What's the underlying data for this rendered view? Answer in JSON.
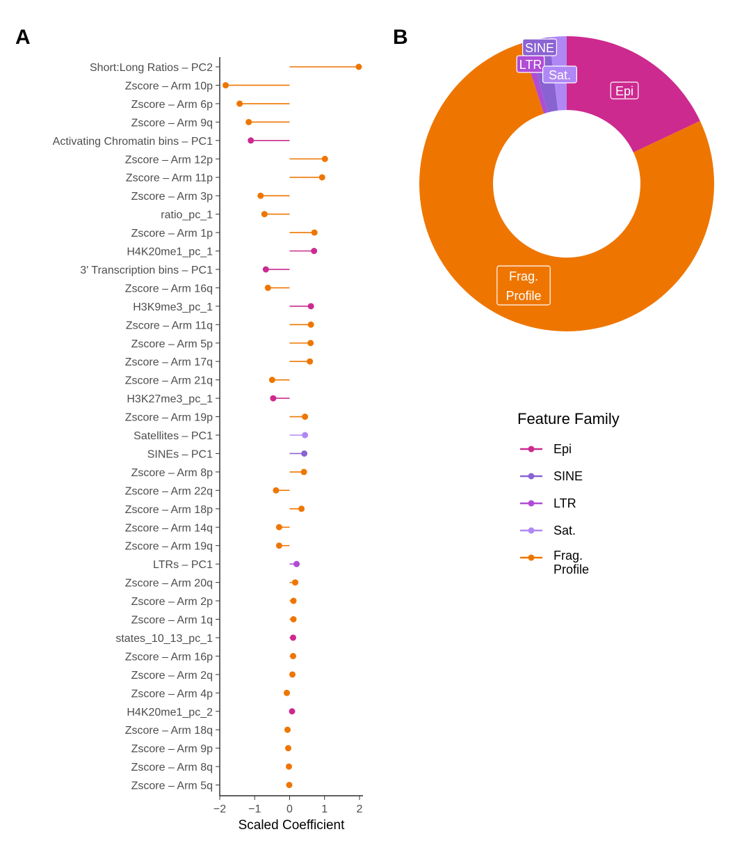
{
  "panels": {
    "a": "A",
    "b": "B"
  },
  "colors": {
    "Epi": "#cc2a8f",
    "SINE": "#8a63d2",
    "LTR": "#b04cd6",
    "Sat.": "#b088f5",
    "Frag. Profile": "#ee7600"
  },
  "chart_data": [
    {
      "type": "lollipop",
      "xlabel": "Scaled Coefficient",
      "xlim": [
        -2,
        2.1
      ],
      "xticks": [
        -2,
        -1,
        0,
        1,
        2
      ],
      "xtick_labels": [
        "−2",
        "−1",
        "0",
        "1",
        "2"
      ],
      "features": [
        {
          "label": "Short:Long Ratios – PC2",
          "value": 1.98,
          "family": "Frag. Profile"
        },
        {
          "label": "Zscore – Arm 10p",
          "value": -1.83,
          "family": "Frag. Profile"
        },
        {
          "label": "Zscore – Arm 6p",
          "value": -1.43,
          "family": "Frag. Profile"
        },
        {
          "label": "Zscore – Arm 9q",
          "value": -1.17,
          "family": "Frag. Profile"
        },
        {
          "label": "Activating Chromatin bins – PC1",
          "value": -1.11,
          "family": "Epi"
        },
        {
          "label": "Zscore – Arm 12p",
          "value": 1.01,
          "family": "Frag. Profile"
        },
        {
          "label": "Zscore – Arm 11p",
          "value": 0.93,
          "family": "Frag. Profile"
        },
        {
          "label": "Zscore – Arm 3p",
          "value": -0.83,
          "family": "Frag. Profile"
        },
        {
          "label": "ratio_pc_1",
          "value": -0.72,
          "family": "Frag. Profile"
        },
        {
          "label": "Zscore – Arm 1p",
          "value": 0.71,
          "family": "Frag. Profile"
        },
        {
          "label": "H4K20me1_pc_1",
          "value": 0.7,
          "family": "Epi"
        },
        {
          "label": "3' Transcription bins – PC1",
          "value": -0.68,
          "family": "Epi"
        },
        {
          "label": "Zscore – Arm 16q",
          "value": -0.62,
          "family": "Frag. Profile"
        },
        {
          "label": "H3K9me3_pc_1",
          "value": 0.61,
          "family": "Epi"
        },
        {
          "label": "Zscore – Arm 11q",
          "value": 0.61,
          "family": "Frag. Profile"
        },
        {
          "label": "Zscore – Arm 5p",
          "value": 0.6,
          "family": "Frag. Profile"
        },
        {
          "label": "Zscore – Arm 17q",
          "value": 0.58,
          "family": "Frag. Profile"
        },
        {
          "label": "Zscore – Arm 21q",
          "value": -0.5,
          "family": "Frag. Profile"
        },
        {
          "label": "H3K27me3_pc_1",
          "value": -0.47,
          "family": "Epi"
        },
        {
          "label": "Zscore – Arm 19p",
          "value": 0.44,
          "family": "Frag. Profile"
        },
        {
          "label": "Satellites – PC1",
          "value": 0.44,
          "family": "Sat."
        },
        {
          "label": "SINEs – PC1",
          "value": 0.42,
          "family": "SINE"
        },
        {
          "label": "Zscore – Arm 8p",
          "value": 0.41,
          "family": "Frag. Profile"
        },
        {
          "label": "Zscore – Arm 22q",
          "value": -0.39,
          "family": "Frag. Profile"
        },
        {
          "label": "Zscore – Arm 18p",
          "value": 0.34,
          "family": "Frag. Profile"
        },
        {
          "label": "Zscore – Arm 14q",
          "value": -0.3,
          "family": "Frag. Profile"
        },
        {
          "label": "Zscore – Arm 19q",
          "value": -0.3,
          "family": "Frag. Profile"
        },
        {
          "label": "LTRs – PC1",
          "value": 0.2,
          "family": "LTR"
        },
        {
          "label": "Zscore – Arm 20q",
          "value": 0.16,
          "family": "Frag. Profile"
        },
        {
          "label": "Zscore – Arm 2p",
          "value": 0.11,
          "family": "Frag. Profile"
        },
        {
          "label": "Zscore – Arm 1q",
          "value": 0.11,
          "family": "Frag. Profile"
        },
        {
          "label": "states_10_13_pc_1",
          "value": 0.1,
          "family": "Epi"
        },
        {
          "label": "Zscore – Arm 16p",
          "value": 0.1,
          "family": "Frag. Profile"
        },
        {
          "label": "Zscore – Arm 2q",
          "value": 0.08,
          "family": "Frag. Profile"
        },
        {
          "label": "Zscore – Arm 4p",
          "value": -0.08,
          "family": "Frag. Profile"
        },
        {
          "label": "H4K20me1_pc_2",
          "value": 0.07,
          "family": "Epi"
        },
        {
          "label": "Zscore – Arm 18q",
          "value": -0.06,
          "family": "Frag. Profile"
        },
        {
          "label": "Zscore – Arm 9p",
          "value": -0.04,
          "family": "Frag. Profile"
        },
        {
          "label": "Zscore – Arm 8q",
          "value": -0.02,
          "family": "Frag. Profile"
        },
        {
          "label": "Zscore – Arm 5q",
          "value": -0.01,
          "family": "Frag. Profile"
        }
      ]
    },
    {
      "type": "pie",
      "variant": "donut",
      "slices": [
        {
          "label": "Epi",
          "value": 18.0,
          "family": "Epi"
        },
        {
          "label": "Frag. Profile",
          "value": 77.0,
          "family": "Frag. Profile"
        },
        {
          "label": "LTR",
          "value": 0.8,
          "family": "LTR"
        },
        {
          "label": "SINE",
          "value": 2.3,
          "family": "SINE"
        },
        {
          "label": "Sat.",
          "value": 1.9,
          "family": "Sat."
        }
      ],
      "legend": {
        "title": "Feature Family",
        "placement": "right",
        "entries": [
          {
            "label": "Epi",
            "family": "Epi"
          },
          {
            "label": "SINE",
            "family": "SINE"
          },
          {
            "label": "LTR",
            "family": "LTR"
          },
          {
            "label": "Sat.",
            "family": "Sat."
          },
          {
            "label": "Frag. Profile",
            "family": "Frag. Profile"
          }
        ]
      }
    }
  ]
}
